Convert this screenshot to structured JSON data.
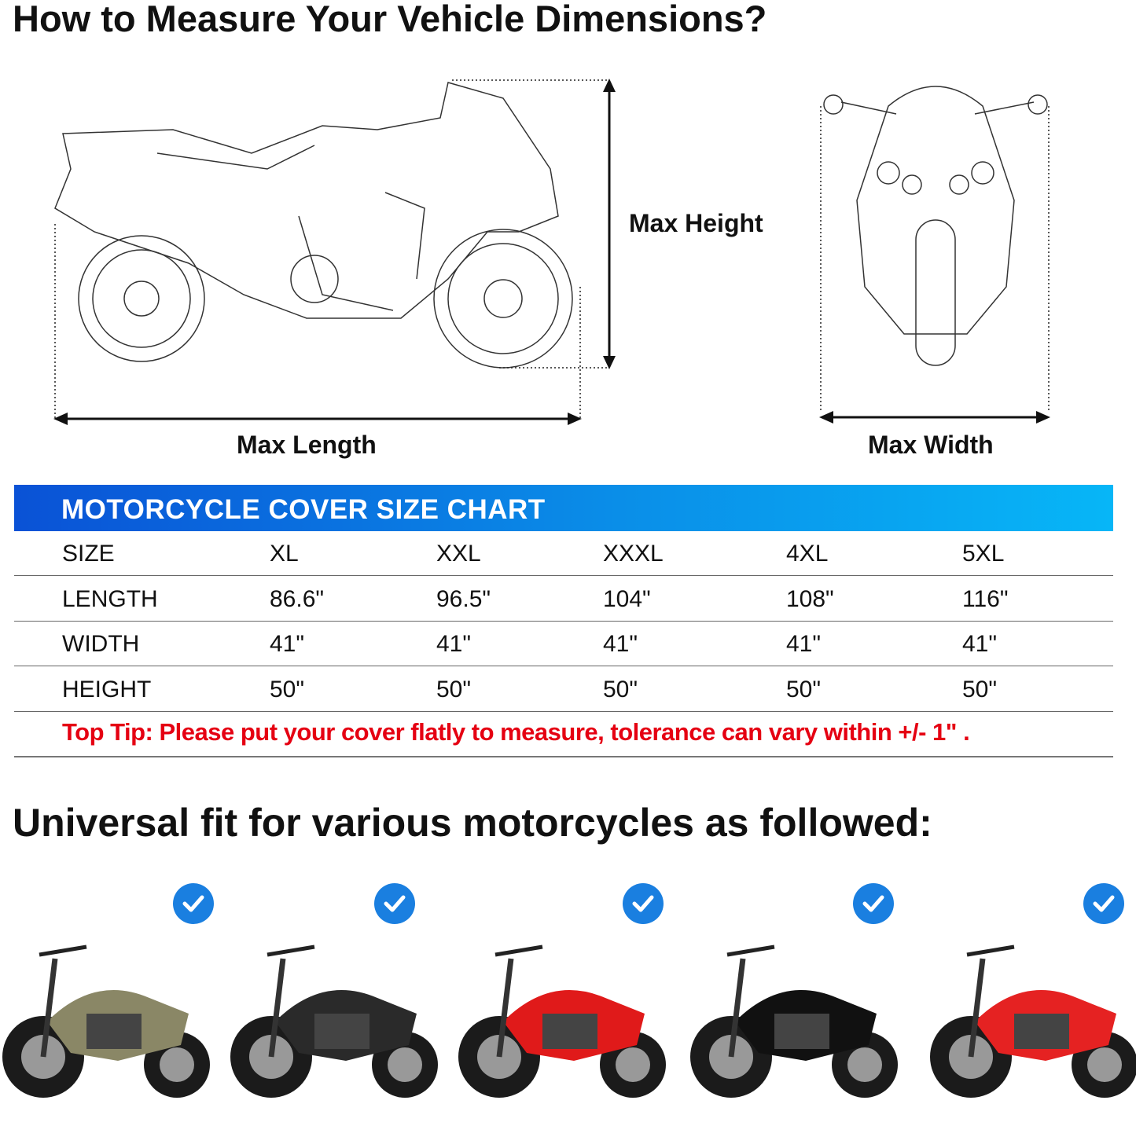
{
  "title": "How to Measure Your Vehicle Dimensions?",
  "diagram": {
    "max_height": "Max Height",
    "max_length": "Max Length",
    "max_width": "Max Width"
  },
  "size_chart": {
    "title": "MOTORCYCLE COVER SIZE CHART",
    "header_color": "#0a6fe0",
    "rows": [
      {
        "label": "SIZE",
        "values": [
          "XL",
          "XXL",
          "XXXL",
          "4XL",
          "5XL"
        ]
      },
      {
        "label": "LENGTH",
        "values": [
          "86.6\"",
          "96.5\"",
          "104\"",
          "108\"",
          "116\""
        ]
      },
      {
        "label": "WIDTH",
        "values": [
          "41\"",
          "41\"",
          "41\"",
          "41\"",
          "41\""
        ]
      },
      {
        "label": "HEIGHT",
        "values": [
          "50\"",
          "50\"",
          "50\"",
          "50\"",
          "50\""
        ]
      }
    ],
    "tip": "Top Tip: Please put your cover flatly to measure, tolerance can vary within +/- 1\" .",
    "tip_color": "#e50012"
  },
  "fit_heading": "Universal fit for various motorcycles as followed:",
  "motorcycles": [
    {
      "type": "cruiser",
      "color": "#8a8766",
      "icon": "check-icon"
    },
    {
      "type": "scooter",
      "color": "#2a2a2a",
      "icon": "check-icon"
    },
    {
      "type": "sport",
      "color": "#e01a1a",
      "icon": "check-icon"
    },
    {
      "type": "cruiser",
      "color": "#111111",
      "icon": "check-icon"
    },
    {
      "type": "vespa",
      "color": "#e52222",
      "icon": "check-icon"
    }
  ]
}
